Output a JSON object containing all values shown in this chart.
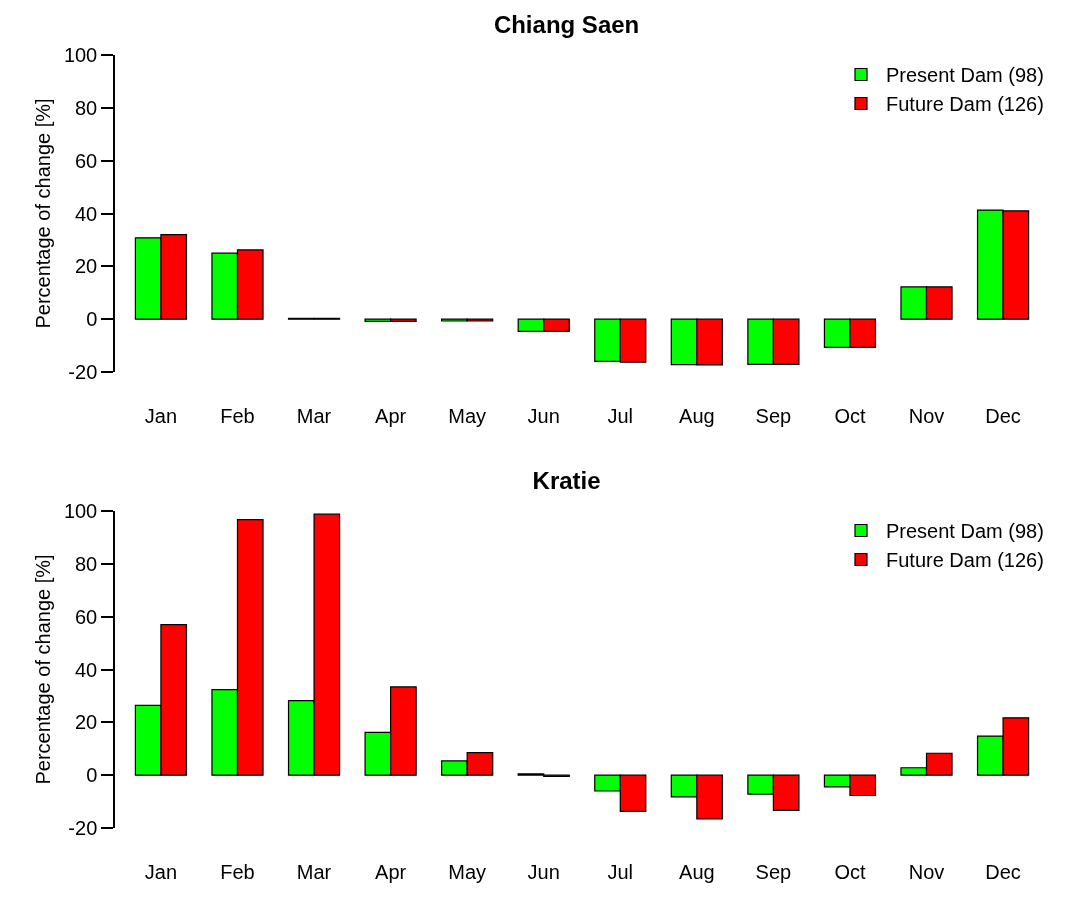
{
  "chart_data": [
    {
      "type": "bar",
      "title": "Chiang Saen",
      "ylabel": "Percentage of change [%]",
      "categories": [
        "Jan",
        "Feb",
        "Mar",
        "Apr",
        "May",
        "Jun",
        "Jul",
        "Aug",
        "Sep",
        "Oct",
        "Nov",
        "Dec"
      ],
      "series": [
        {
          "name": "Present Dam (98)",
          "color": "#00ff00",
          "values": [
            30.8,
            25.0,
            0.3,
            -0.8,
            -0.7,
            -4.6,
            -16.0,
            -17.2,
            -17.1,
            -10.7,
            12.2,
            41.3
          ]
        },
        {
          "name": "Future Dam (126)",
          "color": "#ff0000",
          "values": [
            32.0,
            26.2,
            0.3,
            -0.8,
            -0.7,
            -4.6,
            -16.3,
            -17.3,
            -17.1,
            -10.7,
            12.2,
            41.0
          ]
        }
      ],
      "ylim": [
        -20,
        100
      ],
      "yticks": [
        -20,
        0,
        20,
        40,
        60,
        80,
        100
      ],
      "legend": "top right"
    },
    {
      "type": "bar",
      "title": "Kratie",
      "ylabel": "Percentage of change [%]",
      "categories": [
        "Jan",
        "Feb",
        "Mar",
        "Apr",
        "May",
        "Jun",
        "Jul",
        "Aug",
        "Sep",
        "Oct",
        "Nov",
        "Dec"
      ],
      "series": [
        {
          "name": "Present Dam (98)",
          "color": "#00ff00",
          "values": [
            26.4,
            32.4,
            28.2,
            16.2,
            5.4,
            0.5,
            -6.0,
            -8.2,
            -7.2,
            -4.4,
            2.8,
            14.8
          ]
        },
        {
          "name": "Future Dam (126)",
          "color": "#ff0000",
          "values": [
            57.0,
            96.7,
            98.8,
            33.4,
            8.5,
            -0.5,
            -13.7,
            -16.6,
            -13.3,
            -7.7,
            8.3,
            21.7
          ]
        }
      ],
      "ylim": [
        -20,
        100
      ],
      "yticks": [
        -20,
        0,
        20,
        40,
        60,
        80,
        100
      ],
      "legend": "top right"
    }
  ]
}
